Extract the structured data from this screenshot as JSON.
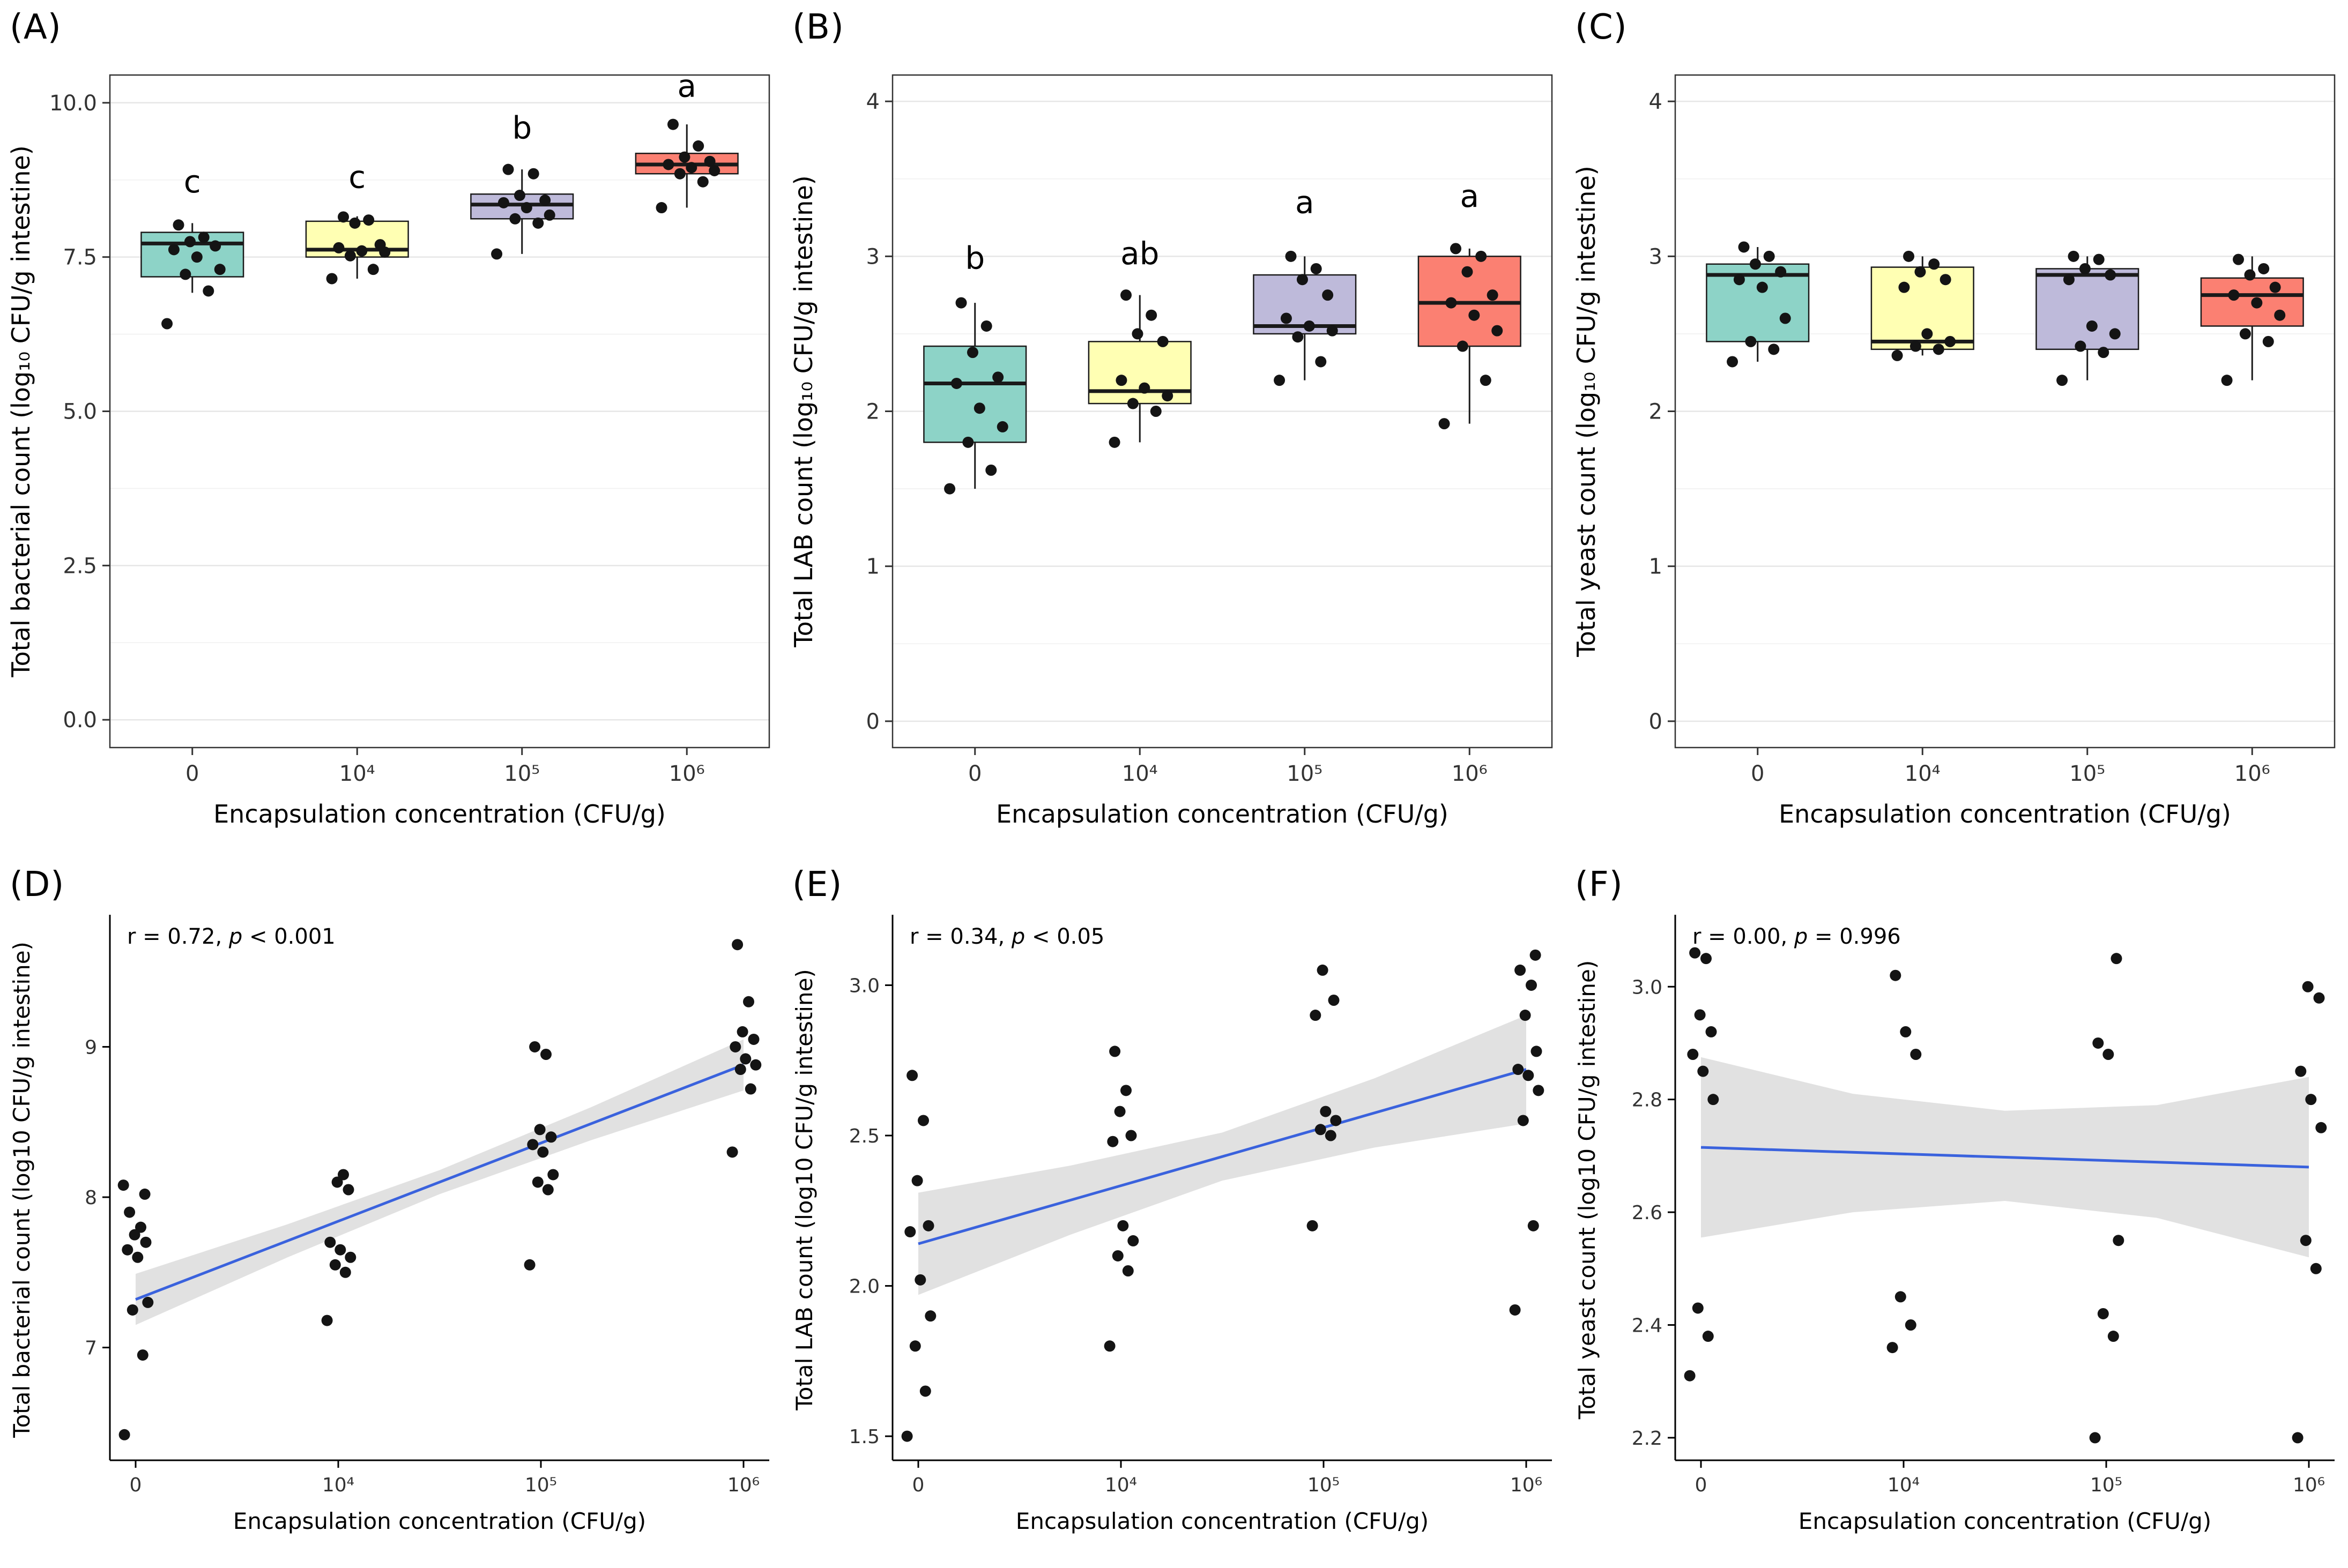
{
  "figure": {
    "background": "#ffffff",
    "point_color": "#141414",
    "box_stroke": "#1a1a1a",
    "regression_line_color": "#3a62dd",
    "confidence_band_color": "#c9c9c9",
    "grid_major_color": "#e6e6e6",
    "grid_minor_color": "#f2f2f2",
    "panel_border_color": "#333333",
    "tick_label_color": "#333333",
    "axis_text_color": "#000000",
    "palette": [
      "#8DD3C7",
      "#FFFFB3",
      "#BEBADA",
      "#FB8072"
    ]
  },
  "chart_data": [
    {
      "id": "A",
      "panel_label": "(A)",
      "type": "box",
      "xlabel": "Encapsulation concentration (CFU/g)",
      "ylabel": "Total bacterial count (log₁₀ CFU/g intestine)",
      "categories": [
        "0",
        "10⁴",
        "10⁵",
        "10⁶"
      ],
      "ylim": [
        -0.45,
        10.45
      ],
      "yticks": [
        0,
        2.5,
        5,
        7.5,
        10
      ],
      "ytick_labels": [
        "0.0",
        "2.5",
        "5.0",
        "7.5",
        "10.0"
      ],
      "groups": [
        {
          "category": "0",
          "color": "#8DD3C7",
          "letter": "c",
          "letter_y": 8.55,
          "box": {
            "whisker_low": 6.92,
            "q1": 7.18,
            "median": 7.72,
            "q3": 7.9,
            "whisker_high": 8.05
          },
          "points": [
            6.42,
            6.95,
            7.22,
            7.3,
            7.5,
            7.62,
            7.68,
            7.75,
            7.82,
            8.02
          ]
        },
        {
          "category": "10⁴",
          "color": "#FFFFB3",
          "letter": "c",
          "letter_y": 8.62,
          "box": {
            "whisker_low": 7.15,
            "q1": 7.5,
            "median": 7.62,
            "q3": 8.08,
            "whisker_high": 8.16
          },
          "points": [
            7.15,
            7.3,
            7.52,
            7.58,
            7.6,
            7.65,
            7.7,
            8.05,
            8.1,
            8.15
          ]
        },
        {
          "category": "10⁵",
          "color": "#BEBADA",
          "letter": "b",
          "letter_y": 9.42,
          "box": {
            "whisker_low": 7.55,
            "q1": 8.12,
            "median": 8.35,
            "q3": 8.52,
            "whisker_high": 8.92
          },
          "points": [
            7.55,
            8.05,
            8.12,
            8.18,
            8.3,
            8.38,
            8.42,
            8.5,
            8.85,
            8.92
          ]
        },
        {
          "category": "10⁶",
          "color": "#FB8072",
          "letter": "a",
          "letter_y": 10.1,
          "box": {
            "whisker_low": 8.3,
            "q1": 8.85,
            "median": 9.0,
            "q3": 9.18,
            "whisker_high": 9.65
          },
          "points": [
            8.3,
            8.72,
            8.85,
            8.9,
            8.95,
            9.0,
            9.05,
            9.12,
            9.3,
            9.65
          ]
        }
      ]
    },
    {
      "id": "B",
      "panel_label": "(B)",
      "type": "box",
      "xlabel": "Encapsulation concentration (CFU/g)",
      "ylabel": "Total LAB count (log₁₀ CFU/g intestine)",
      "categories": [
        "0",
        "10⁴",
        "10⁵",
        "10⁶"
      ],
      "ylim": [
        -0.17,
        4.17
      ],
      "yticks": [
        0,
        1,
        2,
        3,
        4
      ],
      "ytick_labels": [
        "0",
        "1",
        "2",
        "3",
        "4"
      ],
      "groups": [
        {
          "category": "0",
          "color": "#8DD3C7",
          "letter": "b",
          "letter_y": 2.92,
          "box": {
            "whisker_low": 1.5,
            "q1": 1.8,
            "median": 2.18,
            "q3": 2.42,
            "whisker_high": 2.7
          },
          "points": [
            1.5,
            1.62,
            1.8,
            1.9,
            2.02,
            2.18,
            2.22,
            2.38,
            2.55,
            2.7
          ]
        },
        {
          "category": "10⁴",
          "color": "#FFFFB3",
          "letter": "ab",
          "letter_y": 2.95,
          "box": {
            "whisker_low": 1.8,
            "q1": 2.05,
            "median": 2.13,
            "q3": 2.45,
            "whisker_high": 2.75
          },
          "points": [
            1.8,
            2.0,
            2.05,
            2.1,
            2.15,
            2.2,
            2.45,
            2.5,
            2.62,
            2.75
          ]
        },
        {
          "category": "10⁵",
          "color": "#BEBADA",
          "letter": "a",
          "letter_y": 3.28,
          "box": {
            "whisker_low": 2.2,
            "q1": 2.5,
            "median": 2.55,
            "q3": 2.88,
            "whisker_high": 3.0
          },
          "points": [
            2.2,
            2.32,
            2.48,
            2.52,
            2.55,
            2.6,
            2.75,
            2.85,
            2.92,
            3.0
          ]
        },
        {
          "category": "10⁶",
          "color": "#FB8072",
          "letter": "a",
          "letter_y": 3.32,
          "box": {
            "whisker_low": 1.92,
            "q1": 2.42,
            "median": 2.7,
            "q3": 3.0,
            "whisker_high": 3.05
          },
          "points": [
            1.92,
            2.2,
            2.42,
            2.52,
            2.62,
            2.7,
            2.75,
            2.9,
            3.0,
            3.05
          ]
        }
      ]
    },
    {
      "id": "C",
      "panel_label": "(C)",
      "type": "box",
      "xlabel": "Encapsulation concentration (CFU/g)",
      "ylabel": "Total yeast count (log₁₀ CFU/g intestine)",
      "categories": [
        "0",
        "10⁴",
        "10⁵",
        "10⁶"
      ],
      "ylim": [
        -0.17,
        4.17
      ],
      "yticks": [
        0,
        1,
        2,
        3,
        4
      ],
      "ytick_labels": [
        "0",
        "1",
        "2",
        "3",
        "4"
      ],
      "groups": [
        {
          "category": "0",
          "color": "#8DD3C7",
          "letter": "",
          "letter_y": null,
          "box": {
            "whisker_low": 2.32,
            "q1": 2.45,
            "median": 2.88,
            "q3": 2.95,
            "whisker_high": 3.06
          },
          "points": [
            2.32,
            2.4,
            2.45,
            2.6,
            2.8,
            2.85,
            2.9,
            2.95,
            3.0,
            3.06
          ]
        },
        {
          "category": "10⁴",
          "color": "#FFFFB3",
          "letter": "",
          "letter_y": null,
          "box": {
            "whisker_low": 2.36,
            "q1": 2.4,
            "median": 2.45,
            "q3": 2.93,
            "whisker_high": 3.0
          },
          "points": [
            2.36,
            2.4,
            2.42,
            2.45,
            2.5,
            2.8,
            2.85,
            2.9,
            2.95,
            3.0
          ]
        },
        {
          "category": "10⁵",
          "color": "#BEBADA",
          "letter": "",
          "letter_y": null,
          "box": {
            "whisker_low": 2.2,
            "q1": 2.4,
            "median": 2.88,
            "q3": 2.92,
            "whisker_high": 3.0
          },
          "points": [
            2.2,
            2.38,
            2.42,
            2.5,
            2.55,
            2.85,
            2.88,
            2.92,
            2.98,
            3.0
          ]
        },
        {
          "category": "10⁶",
          "color": "#FB8072",
          "letter": "",
          "letter_y": null,
          "box": {
            "whisker_low": 2.2,
            "q1": 2.55,
            "median": 2.75,
            "q3": 2.86,
            "whisker_high": 3.0
          },
          "points": [
            2.2,
            2.45,
            2.5,
            2.62,
            2.7,
            2.75,
            2.8,
            2.88,
            2.92,
            2.98
          ]
        }
      ]
    },
    {
      "id": "D",
      "panel_label": "(D)",
      "type": "scatter",
      "xlabel": "Encapsulation concentration (CFU/g)",
      "ylabel": "Total bacterial count (log10 CFU/g intestine)",
      "annotation": {
        "pre_italic": "r = 0.72, ",
        "italic": "p",
        "post_italic": " < 0.001"
      },
      "categories": [
        "0",
        "10⁴",
        "10⁵",
        "10⁶"
      ],
      "ylim": [
        6.25,
        9.85
      ],
      "yticks": [
        7,
        8,
        9
      ],
      "ytick_labels": [
        "7",
        "8",
        "9"
      ],
      "series": [
        {
          "x_category": "0",
          "values": [
            6.42,
            6.95,
            7.25,
            7.3,
            7.6,
            7.65,
            7.7,
            7.75,
            7.8,
            7.9,
            8.02,
            8.08
          ]
        },
        {
          "x_category": "10⁴",
          "values": [
            7.18,
            7.5,
            7.55,
            7.6,
            7.65,
            7.7,
            8.05,
            8.1,
            8.15
          ]
        },
        {
          "x_category": "10⁵",
          "values": [
            7.55,
            8.05,
            8.1,
            8.15,
            8.3,
            8.35,
            8.4,
            8.45,
            8.95,
            9.0
          ]
        },
        {
          "x_category": "10⁶",
          "values": [
            8.3,
            8.72,
            8.85,
            8.88,
            8.92,
            9.0,
            9.05,
            9.1,
            9.3,
            9.68
          ]
        }
      ],
      "regression": {
        "x": [
          0,
          3
        ],
        "y": [
          7.32,
          8.88
        ]
      },
      "confidence_band": {
        "x": [
          0,
          0.75,
          1.5,
          2.25,
          3
        ],
        "upper": [
          7.49,
          7.82,
          8.18,
          8.6,
          9.05
        ],
        "lower": [
          7.15,
          7.6,
          8.02,
          8.38,
          8.71
        ]
      }
    },
    {
      "id": "E",
      "panel_label": "(E)",
      "type": "scatter",
      "xlabel": "Encapsulation concentration (CFU/g)",
      "ylabel": "Total LAB count (log10 CFU/g intestine)",
      "annotation": {
        "pre_italic": "r = 0.34, ",
        "italic": "p",
        "post_italic": " < 0.05"
      },
      "categories": [
        "0",
        "10⁴",
        "10⁵",
        "10⁶"
      ],
      "ylim": [
        1.42,
        3.22
      ],
      "yticks": [
        1.5,
        2.0,
        2.5,
        3.0
      ],
      "ytick_labels": [
        "1.5",
        "2.0",
        "2.5",
        "3.0"
      ],
      "series": [
        {
          "x_category": "0",
          "values": [
            1.5,
            1.65,
            1.8,
            1.9,
            2.02,
            2.18,
            2.2,
            2.35,
            2.55,
            2.7
          ]
        },
        {
          "x_category": "10⁴",
          "values": [
            1.8,
            2.05,
            2.1,
            2.15,
            2.2,
            2.48,
            2.5,
            2.58,
            2.65,
            2.78
          ]
        },
        {
          "x_category": "10⁵",
          "values": [
            2.2,
            2.5,
            2.52,
            2.55,
            2.58,
            2.9,
            2.95,
            3.05
          ]
        },
        {
          "x_category": "10⁶",
          "values": [
            1.92,
            2.2,
            2.55,
            2.65,
            2.7,
            2.72,
            2.78,
            2.9,
            3.0,
            3.05,
            3.1
          ]
        }
      ],
      "regression": {
        "x": [
          0,
          3
        ],
        "y": [
          2.14,
          2.72
        ]
      },
      "confidence_band": {
        "x": [
          0,
          0.75,
          1.5,
          2.25,
          3
        ],
        "upper": [
          2.31,
          2.4,
          2.51,
          2.69,
          2.9
        ],
        "lower": [
          1.97,
          2.17,
          2.35,
          2.46,
          2.54
        ]
      }
    },
    {
      "id": "F",
      "panel_label": "(F)",
      "type": "scatter",
      "xlabel": "Encapsulation concentration (CFU/g)",
      "ylabel": "Total yeast count (log10 CFU/g intestine)",
      "annotation": {
        "pre_italic": "r = 0.00, ",
        "italic": "p",
        "post_italic": " = 0.996"
      },
      "categories": [
        "0",
        "10⁴",
        "10⁵",
        "10⁶"
      ],
      "ylim": [
        2.16,
        3.12
      ],
      "yticks": [
        2.2,
        2.4,
        2.6,
        2.8,
        3.0
      ],
      "ytick_labels": [
        "2.2",
        "2.4",
        "2.6",
        "2.8",
        "3.0"
      ],
      "series": [
        {
          "x_category": "0",
          "values": [
            2.31,
            2.38,
            2.43,
            2.8,
            2.85,
            2.88,
            2.92,
            2.95,
            3.05,
            3.06
          ]
        },
        {
          "x_category": "10⁴",
          "values": [
            2.36,
            2.4,
            2.45,
            2.88,
            2.92,
            3.02
          ]
        },
        {
          "x_category": "10⁵",
          "values": [
            2.2,
            2.38,
            2.42,
            2.55,
            2.88,
            2.9,
            3.05
          ]
        },
        {
          "x_category": "10⁶",
          "values": [
            2.2,
            2.5,
            2.55,
            2.75,
            2.8,
            2.85,
            2.98,
            3.0
          ]
        }
      ],
      "regression": {
        "x": [
          0,
          3
        ],
        "y": [
          2.715,
          2.68
        ]
      },
      "confidence_band": {
        "x": [
          0,
          0.75,
          1.5,
          2.25,
          3
        ],
        "upper": [
          2.875,
          2.81,
          2.78,
          2.79,
          2.84
        ],
        "lower": [
          2.555,
          2.6,
          2.62,
          2.59,
          2.52
        ]
      }
    }
  ]
}
